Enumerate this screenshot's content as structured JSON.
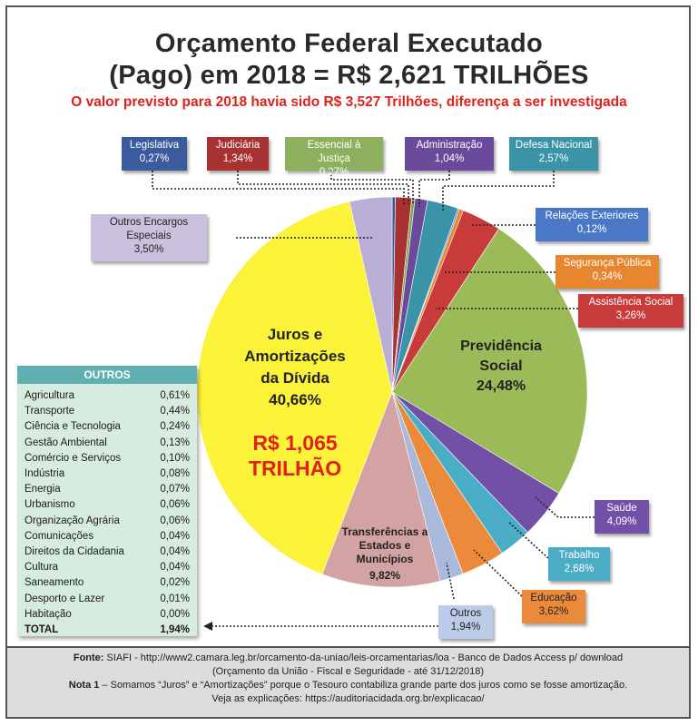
{
  "title": {
    "line1": "Orçamento Federal Executado",
    "line2": "(Pago) em 2018 = R$ 2,621 TRILHÕES",
    "subtitle": "O valor previsto para 2018 havia sido R$ 3,527 Trilhões, diferença a ser investigada"
  },
  "chart_data": {
    "type": "pie",
    "title": "Orçamento Federal Executado (Pago) em 2018 = R$ 2,621 TRILHÕES",
    "unit": "%",
    "slices": [
      {
        "name": "Legislativa",
        "value": 0.27,
        "label": "0,27%",
        "color": "#3a5b9e"
      },
      {
        "name": "Judiciária",
        "value": 1.34,
        "label": "1,34%",
        "color": "#a83232"
      },
      {
        "name": "Essencial à Justiça",
        "value": 0.27,
        "label": "0,27%",
        "color": "#7faa4e"
      },
      {
        "name": "Administração",
        "value": 1.04,
        "label": "1,04%",
        "color": "#6a4a9a"
      },
      {
        "name": "Defesa Nacional",
        "value": 2.57,
        "label": "2,57%",
        "color": "#3a93a6"
      },
      {
        "name": "Relações Exteriores",
        "value": 0.12,
        "label": "0,12%",
        "color": "#4a78c6"
      },
      {
        "name": "Segurança Pública",
        "value": 0.34,
        "label": "0,34%",
        "color": "#e8852f"
      },
      {
        "name": "Assistência Social",
        "value": 3.26,
        "label": "3,26%",
        "color": "#c93a3a"
      },
      {
        "name": "Previdência Social",
        "value": 24.48,
        "label": "24,48%",
        "color": "#9bbb59"
      },
      {
        "name": "Saúde",
        "value": 4.09,
        "label": "4,09%",
        "color": "#7350a8"
      },
      {
        "name": "Trabalho",
        "value": 2.68,
        "label": "2,68%",
        "color": "#4bacc6"
      },
      {
        "name": "Educação",
        "value": 3.62,
        "label": "3,62%",
        "color": "#eb8a3a"
      },
      {
        "name": "Outros",
        "value": 1.94,
        "label": "1,94%",
        "color": "#a9b9dc"
      },
      {
        "name": "Transferências a Estados e Municípios",
        "value": 9.82,
        "label": "9,82%",
        "color": "#d3a2a2"
      },
      {
        "name": "Juros e Amortizações da Dívida",
        "value": 40.66,
        "label": "40,66%",
        "color": "#fbf33a"
      },
      {
        "name": "Outros Encargos Especiais",
        "value": 3.5,
        "label": "3,50%",
        "color": "#b8aed6"
      }
    ]
  },
  "labels": {
    "legislativa": {
      "name": "Legislativa",
      "value": "0,27%"
    },
    "judiciaria": {
      "name": "Judiciária",
      "value": "1,34%"
    },
    "essencial": {
      "name": "Essencial à Justiça",
      "value": "0,27%"
    },
    "administracao": {
      "name": "Administração",
      "value": "1,04%"
    },
    "defesa": {
      "name": "Defesa Nacional",
      "value": "2,57%"
    },
    "relacoes": {
      "name": "Relações Exteriores",
      "value": "0,12%"
    },
    "seguranca": {
      "name": "Segurança Pública",
      "value": "0,34%"
    },
    "assistencia": {
      "name": "Assistência Social",
      "value": "3,26%"
    },
    "encargos": {
      "name1": "Outros Encargos",
      "name2": "Especiais",
      "value": "3,50%"
    },
    "saude": {
      "name": "Saúde",
      "value": "4,09%"
    },
    "trabalho": {
      "name": "Trabalho",
      "value": "2,68%"
    },
    "educacao": {
      "name": "Educação",
      "value": "3,62%"
    },
    "outros": {
      "name": "Outros",
      "value": "1,94%"
    }
  },
  "inner_labels": {
    "juros": {
      "line1": "Juros e",
      "line2": "Amortizações",
      "line3": "da Dívida",
      "value": "40,66%",
      "big1": "R$ 1,065",
      "big2": "TRILHÃO"
    },
    "previdencia": {
      "line1": "Previdência",
      "line2": "Social",
      "value": "24,48%"
    },
    "transferencias": {
      "line1": "Transferências a",
      "line2": "Estados e",
      "line3": "Municípios",
      "value": "9,82%"
    }
  },
  "outros_table": {
    "header": "OUTROS",
    "rows": [
      {
        "name": "Agricultura",
        "value": "0,61%"
      },
      {
        "name": "Transporte",
        "value": "0,44%"
      },
      {
        "name": "Ciência e Tecnologia",
        "value": "0,24%"
      },
      {
        "name": "Gestão Ambiental",
        "value": "0,13%"
      },
      {
        "name": "Comércio e Serviços",
        "value": "0,10%"
      },
      {
        "name": "Indústria",
        "value": "0,08%"
      },
      {
        "name": "Energia",
        "value": "0,07%"
      },
      {
        "name": "Urbanismo",
        "value": "0,06%"
      },
      {
        "name": "Organização Agrária",
        "value": "0,06%"
      },
      {
        "name": "Comunicações",
        "value": "0,04%"
      },
      {
        "name": "Direitos da Cidadania",
        "value": "0,04%"
      },
      {
        "name": "Cultura",
        "value": "0,04%"
      },
      {
        "name": "Saneamento",
        "value": "0,02%"
      },
      {
        "name": "Desporto e Lazer",
        "value": "0,01%"
      },
      {
        "name": "Habitação",
        "value": "0,00%"
      }
    ],
    "total_name": "TOTAL",
    "total_value": "1,94%"
  },
  "footer": {
    "fonte_label": "Fonte:",
    "fonte_text": " SIAFI - http://www2.camara.leg.br/orcamento-da-uniao/leis-orcamentarias/loa - Banco de Dados Access p/ download",
    "fonte_line2": "(Orçamento da União - Fiscal e Seguridade - até 31/12/2018)",
    "nota_label": "Nota 1",
    "nota_text": " – Somamos “Juros” e “Amortizações” porque o Tesouro contabiliza grande parte dos juros como se fosse amortização.",
    "veja": "Veja as explicações: https://auditoriacidada.org.br/explicacao/"
  }
}
